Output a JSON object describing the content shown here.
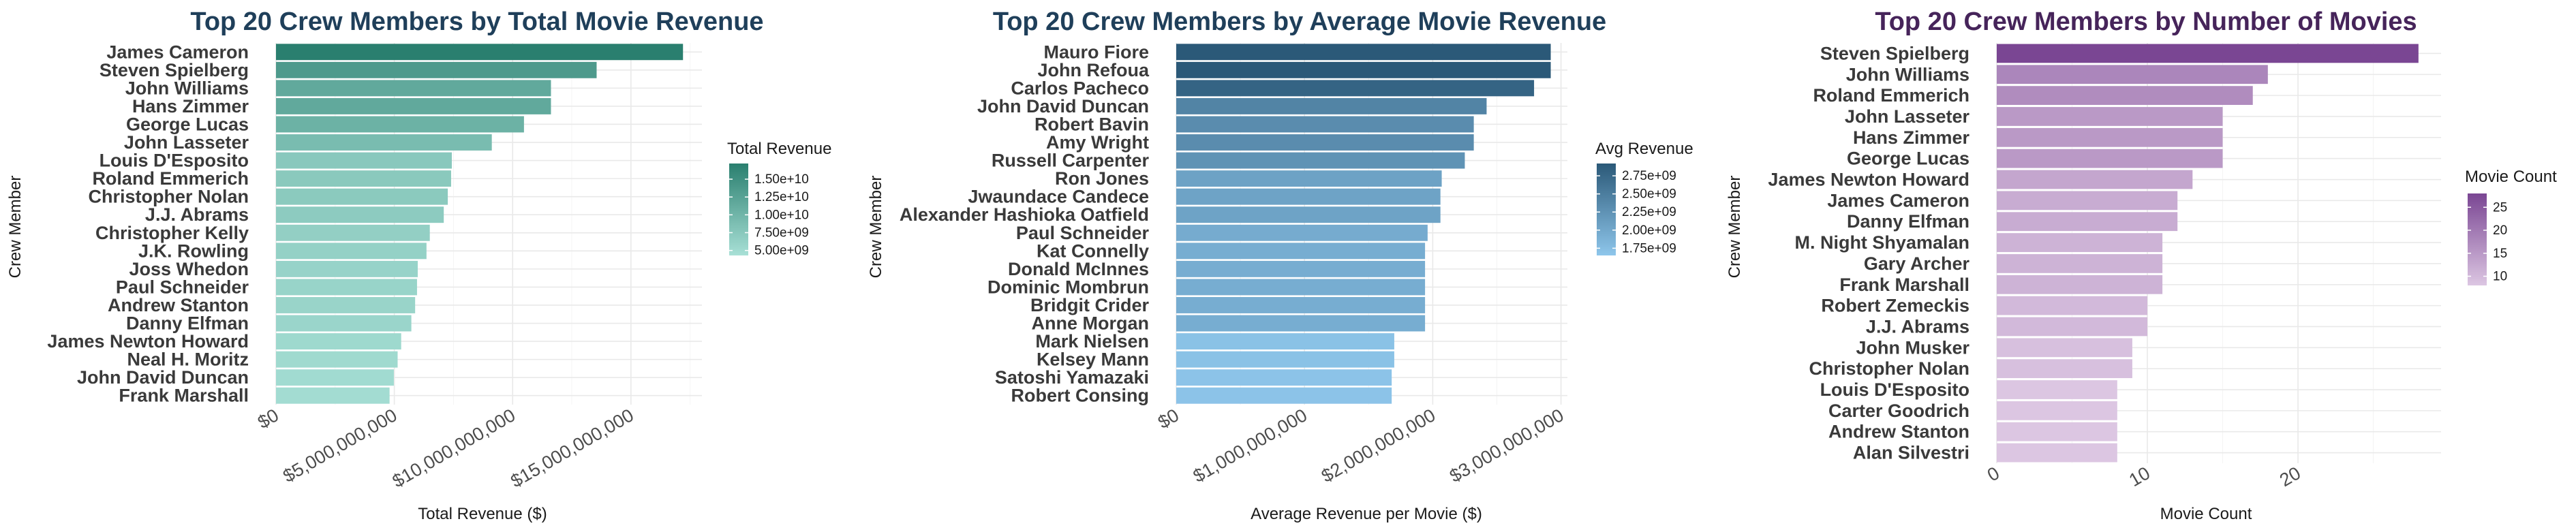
{
  "chart_data": [
    {
      "type": "bar",
      "orientation": "horizontal",
      "title": "Top 20 Crew Members by Total Movie Revenue",
      "title_color": "#1f3f5a",
      "xlabel": "Total Revenue ($)",
      "ylabel": "Crew Member",
      "xlim": [
        0,
        18000000000
      ],
      "xticks": [
        0,
        5000000000,
        10000000000,
        15000000000
      ],
      "xtick_labels": [
        "$0",
        "$5,000,000,000",
        "$10,000,000,000",
        "$15,000,000,000"
      ],
      "grid": true,
      "legend": {
        "title": "Total Revenue",
        "placement": "right",
        "range": [
          4300000000,
          17200000000
        ],
        "ticks": [
          5000000000,
          7500000000,
          10000000000,
          12500000000,
          15000000000
        ],
        "tick_labels": [
          "5.00e+09",
          "7.50e+09",
          "1.00e+10",
          "1.25e+10",
          "1.50e+10"
        ]
      },
      "color_low": "#a8e0d6",
      "color_high": "#2a7f6f",
      "categories": [
        "James Cameron",
        "Steven Spielberg",
        "John Williams",
        "Hans Zimmer",
        "George Lucas",
        "John Lasseter",
        "Louis D'Esposito",
        "Roland Emmerich",
        "Christopher Nolan",
        "J.J. Abrams",
        "Christopher Kelly",
        "J.K. Rowling",
        "Joss Whedon",
        "Paul Schneider",
        "Andrew Stanton",
        "Danny Elfman",
        "James Newton Howard",
        "Neal H. Moritz",
        "John David Duncan",
        "Frank Marshall"
      ],
      "values": [
        17200000000,
        13550000000,
        11620000000,
        11620000000,
        10480000000,
        9120000000,
        7430000000,
        7400000000,
        7260000000,
        7090000000,
        6500000000,
        6360000000,
        5990000000,
        5960000000,
        5880000000,
        5720000000,
        5290000000,
        5140000000,
        4980000000,
        4800000000
      ]
    },
    {
      "type": "bar",
      "orientation": "horizontal",
      "title": "Top 20 Crew Members by Average Movie Revenue",
      "title_color": "#1f3f5a",
      "xlabel": "Average Revenue per Movie ($)",
      "ylabel": "Crew Member",
      "xlim": [
        0,
        3050000000
      ],
      "xticks": [
        0,
        1000000000,
        2000000000,
        3000000000
      ],
      "xtick_labels": [
        "$0",
        "$1,000,000,000",
        "$2,000,000,000",
        "$3,000,000,000"
      ],
      "grid": true,
      "legend": {
        "title": "Avg Revenue",
        "placement": "right",
        "range": [
          1650000000,
          2920000000
        ],
        "ticks": [
          1750000000,
          2000000000,
          2250000000,
          2500000000,
          2750000000
        ],
        "tick_labels": [
          "1.75e+09",
          "2.00e+09",
          "2.25e+09",
          "2.50e+09",
          "2.75e+09"
        ]
      },
      "color_low": "#8ec6eb",
      "color_high": "#2b5978",
      "categories": [
        "Mauro Fiore",
        "John Refoua",
        "Carlos Pacheco",
        "John David Duncan",
        "Robert Bavin",
        "Amy Wright",
        "Russell Carpenter",
        "Ron Jones",
        "Jwaundace Candece",
        "Alexander Hashioka Oatfield",
        "Paul Schneider",
        "Kat Connelly",
        "Donald McInnes",
        "Dominic Mombrun",
        "Bridgit Crider",
        "Anne Morgan",
        "Mark Nielsen",
        "Kelsey Mann",
        "Satoshi Yamazaki",
        "Robert Consing"
      ],
      "values": [
        2920000000,
        2920000000,
        2790000000,
        2420000000,
        2320000000,
        2320000000,
        2250000000,
        2070000000,
        2060000000,
        2060000000,
        1960000000,
        1940000000,
        1940000000,
        1940000000,
        1940000000,
        1940000000,
        1700000000,
        1700000000,
        1680000000,
        1680000000
      ]
    },
    {
      "type": "bar",
      "orientation": "horizontal",
      "title": "Top 20 Crew Members by Number of Movies",
      "title_color": "#46245a",
      "xlabel": "Movie Count",
      "ylabel": "Crew Member",
      "xlim": [
        0,
        29.5
      ],
      "xticks": [
        0,
        10,
        20
      ],
      "xtick_labels": [
        "0",
        "10",
        "20"
      ],
      "grid": true,
      "legend": {
        "title": "Movie Count",
        "placement": "right",
        "range": [
          8,
          28
        ],
        "ticks": [
          10,
          15,
          20,
          25
        ],
        "tick_labels": [
          "10",
          "15",
          "20",
          "25"
        ]
      },
      "color_low": "#dcc6e2",
      "color_high": "#7a4693",
      "categories": [
        "Steven Spielberg",
        "John Williams",
        "Roland Emmerich",
        "John Lasseter",
        "Hans Zimmer",
        "George Lucas",
        "James Newton Howard",
        "James Cameron",
        "Danny Elfman",
        "M. Night Shyamalan",
        "Gary Archer",
        "Frank Marshall",
        "Robert Zemeckis",
        "J.J. Abrams",
        "John Musker",
        "Christopher Nolan",
        "Louis D'Esposito",
        "Carter Goodrich",
        "Andrew Stanton",
        "Alan Silvestri"
      ],
      "values": [
        28,
        18,
        17,
        15,
        15,
        15,
        13,
        12,
        12,
        11,
        11,
        11,
        10,
        10,
        9,
        9,
        8,
        8,
        8,
        8
      ]
    }
  ]
}
